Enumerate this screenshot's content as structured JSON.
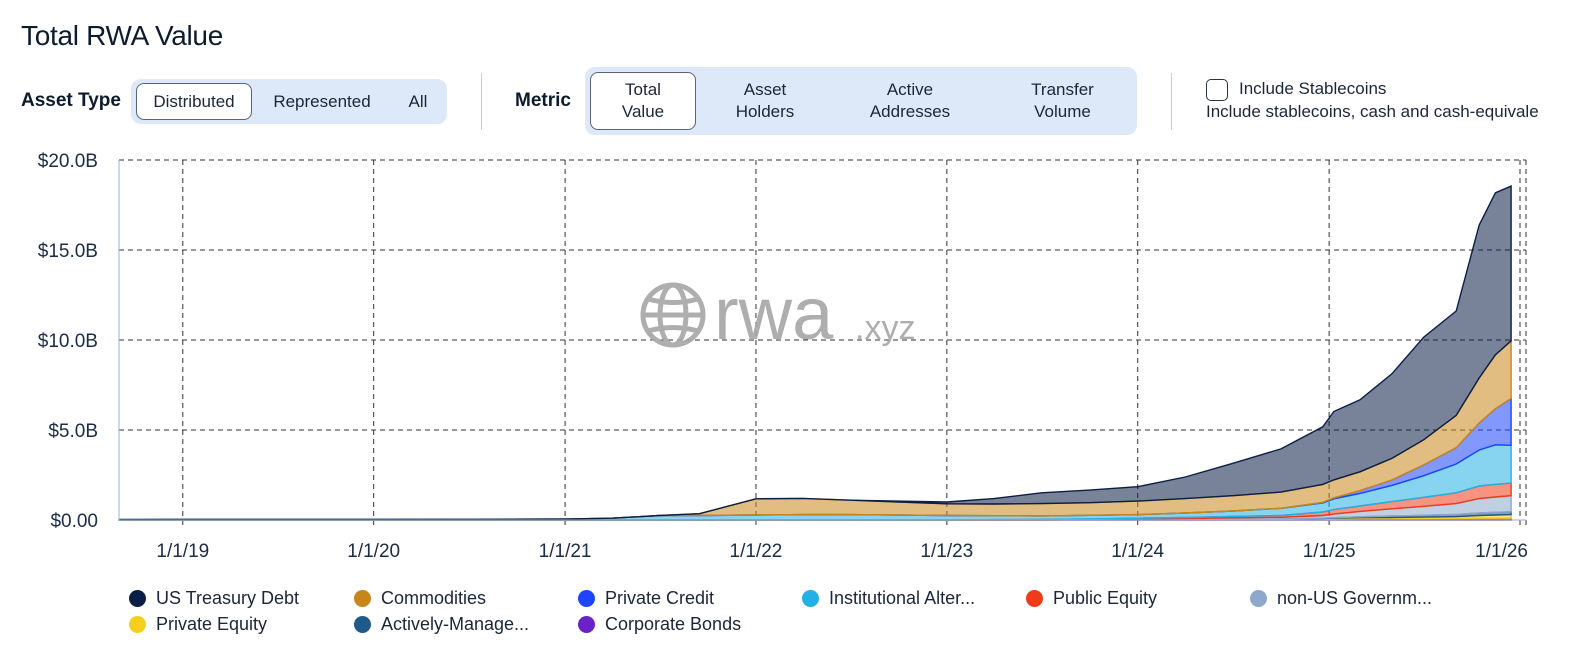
{
  "page": {
    "title": "Total RWA Value"
  },
  "controls": {
    "asset_type_label": "Asset Type",
    "asset_type_options": [
      "Distributed",
      "Represented",
      "All"
    ],
    "metric_label": "Metric",
    "metric_options": [
      {
        "line1": "Total",
        "line2": "Value"
      },
      {
        "line1": "Asset",
        "line2": "Holders"
      },
      {
        "line1": "Active",
        "line2": "Addresses"
      },
      {
        "line1": "Transfer",
        "line2": "Volume"
      }
    ],
    "stablecoins_label": "Include Stablecoins",
    "stablecoins_desc": "Include stablecoins, cash and cash-equivale",
    "stablecoins_checked": false
  },
  "watermark": {
    "main": "rwa",
    "suffix": ".xyz"
  },
  "chart_data": {
    "type": "area",
    "stacked": true,
    "title": "Total RWA Value",
    "xlabel": "",
    "ylabel": "",
    "ylim": [
      0,
      20
    ],
    "y_unit": "B",
    "y_ticks": [
      "$0.00",
      "$5.0B",
      "$10.0B",
      "$15.0B",
      "$20.0B"
    ],
    "x_ticks": [
      "1/1/19",
      "1/1/20",
      "1/1/21",
      "1/1/22",
      "1/1/23",
      "1/1/24",
      "1/1/25",
      "1/1/26"
    ],
    "x_range": [
      "2018-09-01",
      "2026-01-01"
    ],
    "grid": true,
    "x": [
      "2018-09-01",
      "2019-01-01",
      "2019-07-01",
      "2020-01-01",
      "2020-07-01",
      "2021-01-01",
      "2021-04-01",
      "2021-07-01",
      "2021-09-15",
      "2022-01-01",
      "2022-04-01",
      "2022-07-01",
      "2023-01-01",
      "2023-04-01",
      "2023-07-01",
      "2023-10-01",
      "2024-01-01",
      "2024-04-01",
      "2024-07-01",
      "2024-10-01",
      "2024-12-20",
      "2025-01-10",
      "2025-03-01",
      "2025-05-01",
      "2025-07-01",
      "2025-09-01",
      "2025-10-15",
      "2025-11-15",
      "2025-12-15"
    ],
    "series": [
      {
        "name": "Corporate Bonds",
        "color": "#6a22c4",
        "values": [
          0,
          0,
          0,
          0,
          0,
          0,
          0,
          0,
          0,
          0,
          0,
          0,
          0,
          0,
          0,
          0.02,
          0.03,
          0.03,
          0.04,
          0.05,
          0.06,
          0.07,
          0.08,
          0.08,
          0.08,
          0.09,
          0.1,
          0.1,
          0.1
        ]
      },
      {
        "name": "Private Equity",
        "color": "#f6cf1e",
        "values": [
          0,
          0,
          0,
          0,
          0,
          0,
          0,
          0,
          0,
          0,
          0,
          0,
          0,
          0,
          0,
          0,
          0,
          0,
          0,
          0,
          0.02,
          0.03,
          0.05,
          0.06,
          0.08,
          0.1,
          0.15,
          0.18,
          0.2
        ]
      },
      {
        "name": "Actively-Manage...",
        "color": "#1f5a8a",
        "values": [
          0,
          0,
          0,
          0,
          0,
          0,
          0,
          0,
          0,
          0,
          0,
          0,
          0,
          0,
          0,
          0,
          0,
          0,
          0,
          0,
          0.02,
          0.03,
          0.05,
          0.08,
          0.1,
          0.12,
          0.14,
          0.15,
          0.15
        ]
      },
      {
        "name": "non-US Governm...",
        "color": "#8ea8cc",
        "values": [
          0,
          0,
          0,
          0,
          0,
          0,
          0,
          0,
          0,
          0,
          0,
          0,
          0,
          0,
          0,
          0,
          0.02,
          0.05,
          0.08,
          0.1,
          0.15,
          0.2,
          0.3,
          0.4,
          0.5,
          0.6,
          0.8,
          0.85,
          0.9
        ]
      },
      {
        "name": "Public Equity",
        "color": "#ee3b1a",
        "values": [
          0,
          0,
          0,
          0,
          0,
          0,
          0,
          0,
          0,
          0,
          0,
          0,
          0,
          0.02,
          0.03,
          0.04,
          0.05,
          0.06,
          0.08,
          0.1,
          0.2,
          0.25,
          0.3,
          0.4,
          0.5,
          0.6,
          0.7,
          0.7,
          0.7
        ]
      },
      {
        "name": "Institutional Alter...",
        "color": "#23b0e4",
        "values": [
          0.02,
          0.03,
          0.03,
          0.03,
          0.04,
          0.05,
          0.1,
          0.25,
          0.25,
          0.28,
          0.3,
          0.3,
          0.25,
          0.22,
          0.2,
          0.2,
          0.2,
          0.25,
          0.3,
          0.4,
          0.5,
          0.6,
          0.7,
          0.9,
          1.2,
          1.6,
          2.0,
          2.2,
          2.1
        ]
      },
      {
        "name": "Private Credit",
        "color": "#1e44ff",
        "values": [
          0,
          0,
          0,
          0,
          0,
          0,
          0,
          0,
          0,
          0,
          0,
          0,
          0,
          0,
          0,
          0,
          0,
          0,
          0,
          0,
          0.03,
          0.05,
          0.15,
          0.3,
          0.6,
          0.9,
          1.5,
          2.0,
          2.6
        ]
      },
      {
        "name": "Commodities",
        "color": "#c8861a",
        "values": [
          0,
          0,
          0,
          0,
          0,
          0,
          0,
          0,
          0.1,
          0.9,
          0.9,
          0.8,
          0.65,
          0.65,
          0.68,
          0.7,
          0.75,
          0.8,
          0.85,
          0.9,
          1.0,
          1.0,
          1.05,
          1.2,
          1.4,
          1.8,
          2.5,
          3.0,
          3.2
        ]
      },
      {
        "name": "US Treasury Debt",
        "color": "#0a1e46",
        "values": [
          0,
          0,
          0,
          0,
          0,
          0,
          0,
          0,
          0,
          0,
          0,
          0,
          0.1,
          0.3,
          0.6,
          0.7,
          0.8,
          1.2,
          1.8,
          2.4,
          3.2,
          3.8,
          4.0,
          4.7,
          5.7,
          5.8,
          8.5,
          9.0,
          8.6
        ]
      }
    ],
    "legend": {
      "placement": "bottom",
      "entries": [
        {
          "name": "US Treasury Debt",
          "color": "#0a1e46"
        },
        {
          "name": "Commodities",
          "color": "#c8861a"
        },
        {
          "name": "Private Credit",
          "color": "#1e44ff"
        },
        {
          "name": "Institutional Alter...",
          "color": "#23b0e4"
        },
        {
          "name": "Public Equity",
          "color": "#ee3b1a"
        },
        {
          "name": "non-US Governm...",
          "color": "#8ea8cc"
        },
        {
          "name": "Private Equity",
          "color": "#f6cf1e"
        },
        {
          "name": "Actively-Manage...",
          "color": "#1f5a8a"
        },
        {
          "name": "Corporate Bonds",
          "color": "#6a22c4"
        }
      ]
    }
  }
}
